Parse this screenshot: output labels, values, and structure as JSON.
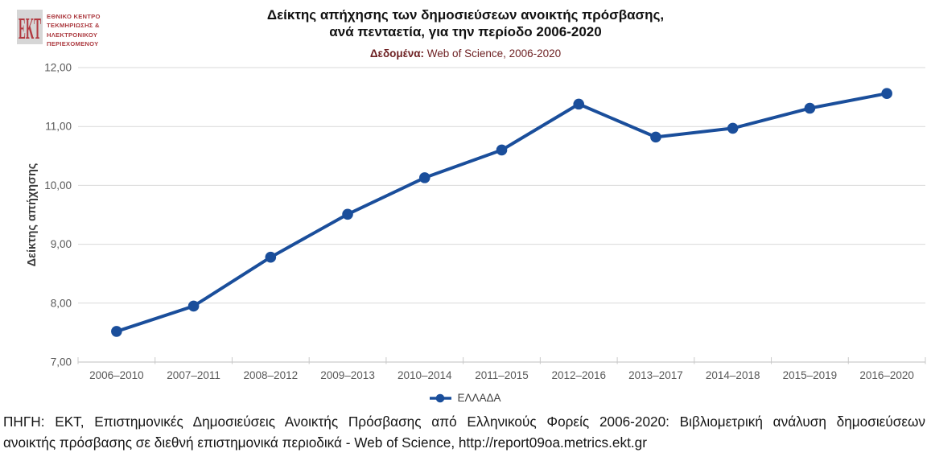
{
  "logo": {
    "acronym": "EKT",
    "name_lines": [
      "ΕΘΝΙΚΟ ΚΕΝΤΡΟ",
      "ΤΕΚΜΗΡΙΩΣΗΣ &",
      "ΗΛΕΚΤΡΟΝΙΚΟΥ",
      "ΠΕΡΙΕΧΟΜΕΝΟΥ"
    ]
  },
  "header": {
    "title_line1": "Δείκτης απήχησης των δημοσιεύσεων ανοικτής πρόσβασης,",
    "title_line2": "ανά πενταετία, για την περίοδο 2006-2020",
    "data_label": "Δεδομένα:",
    "data_source": "Web of Science, 2006-2020"
  },
  "chart_data": {
    "type": "line",
    "title": "Δείκτης απήχησης των δημοσιεύσεων ανοικτής πρόσβασης, ανά πενταετία, για την περίοδο 2006-2020",
    "categories": [
      "2006–2010",
      "2007–2011",
      "2008–2012",
      "2009–2013",
      "2010–2014",
      "2011–2015",
      "2012–2016",
      "2013–2017",
      "2014–2018",
      "2015–2019",
      "2016–2020"
    ],
    "series": [
      {
        "name": "ΕΛΛΑΔΑ",
        "color": "#1a4e9b",
        "values": [
          7.52,
          7.95,
          8.78,
          9.51,
          10.13,
          10.6,
          11.38,
          10.82,
          10.97,
          11.31,
          11.56
        ]
      }
    ],
    "xlabel": "",
    "ylabel": "Δείκτης απήχησης",
    "ylim": [
      7,
      12
    ],
    "yticks": [
      7,
      8,
      9,
      10,
      11,
      12
    ],
    "ytick_labels": [
      "7,00",
      "8,00",
      "9,00",
      "10,00",
      "11,00",
      "12,00"
    ],
    "grid": true,
    "legend_position": "bottom"
  },
  "footer": {
    "line1": "ΠΗΓΗ: ΕΚΤ, Επιστημονικές Δημοσιεύσεις Ανοικτής Πρόσβασης από Ελληνικούς Φορείς 2006-2020: Βιβλιομετρική ανάλυση δημοσιεύσεων",
    "line2": "ανοικτής πρόσβασης σε διεθνή επιστημονικά περιοδικά - Web of Science, http://report09oa.metrics.ekt.gr"
  },
  "colors": {
    "line_blue": "#1a4e9b",
    "logo_red": "#ac3a40",
    "subtitle_maroon": "#6e2123",
    "grid_gray": "#d9d9d9",
    "axis_gray": "#bfbfbf",
    "tick_label_gray": "#595959",
    "ylabel_dark": "#3d3d3d",
    "caption_dark": "#161616"
  }
}
